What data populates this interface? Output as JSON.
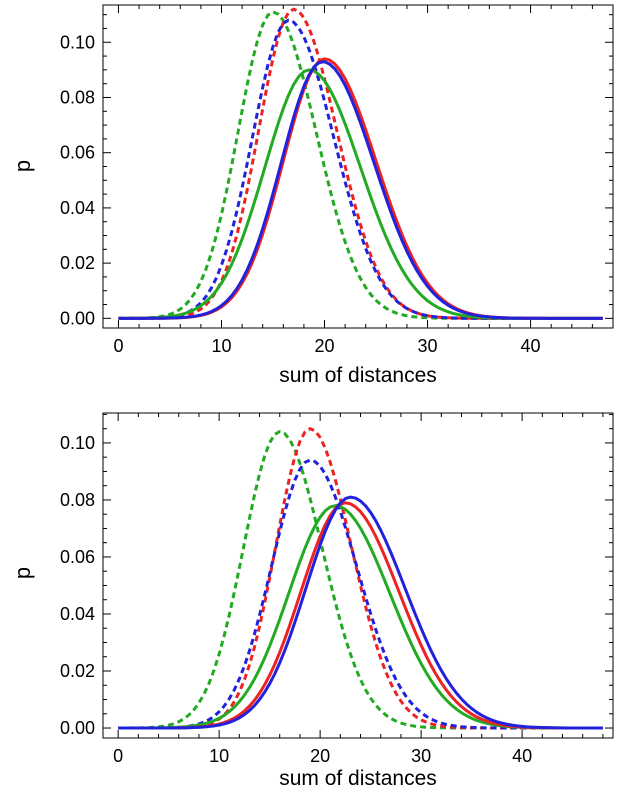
{
  "chart_data": [
    {
      "type": "line",
      "xlabel": "sum of distances",
      "ylabel": "p",
      "xlim": [
        -1.5,
        48
      ],
      "ylim": [
        -0.0035,
        0.1135
      ],
      "xticks": [
        0,
        10,
        20,
        30,
        40
      ],
      "yticks": [
        0.0,
        0.02,
        0.04,
        0.06,
        0.08,
        0.1
      ],
      "ytick_labels": [
        "0.00",
        "0.02",
        "0.04",
        "0.06",
        "0.08",
        "0.10"
      ],
      "grid": false,
      "series": [
        {
          "color": "#22aa22",
          "dash": "dotted",
          "mean": 15.0,
          "left_sd": 3.4,
          "right_sd": 4.2,
          "peak": 0.111,
          "x_max": 47
        },
        {
          "color": "#ee2222",
          "dash": "dotted",
          "mean": 17.0,
          "left_sd": 3.4,
          "right_sd": 4.2,
          "peak": 0.112,
          "x_max": 47
        },
        {
          "color": "#2222dd",
          "dash": "dotted",
          "mean": 16.5,
          "left_sd": 3.5,
          "right_sd": 4.4,
          "peak": 0.108,
          "x_max": 47
        },
        {
          "color": "#22aa22",
          "dash": "solid",
          "mean": 18.5,
          "left_sd": 4.3,
          "right_sd": 5.0,
          "peak": 0.09,
          "x_max": 47
        },
        {
          "color": "#ee2222",
          "dash": "solid",
          "mean": 20.0,
          "left_sd": 4.0,
          "right_sd": 5.0,
          "peak": 0.094,
          "x_max": 47
        },
        {
          "color": "#2222dd",
          "dash": "solid",
          "mean": 19.8,
          "left_sd": 4.0,
          "right_sd": 5.0,
          "peak": 0.093,
          "x_max": 47
        }
      ]
    },
    {
      "type": "line",
      "xlabel": "sum of distances",
      "ylabel": "p",
      "xlim": [
        -1.5,
        49
      ],
      "ylim": [
        -0.0035,
        0.1105
      ],
      "xticks": [
        0,
        10,
        20,
        30,
        40
      ],
      "yticks": [
        0.0,
        0.02,
        0.04,
        0.06,
        0.08,
        0.1
      ],
      "ytick_labels": [
        "0.00",
        "0.02",
        "0.04",
        "0.06",
        "0.08",
        "0.10"
      ],
      "grid": false,
      "series": [
        {
          "color": "#22aa22",
          "dash": "dotted",
          "mean": 16.0,
          "left_sd": 3.6,
          "right_sd": 4.2,
          "peak": 0.104,
          "x_max": 48
        },
        {
          "color": "#ee2222",
          "dash": "dotted",
          "mean": 19.0,
          "left_sd": 3.4,
          "right_sd": 4.1,
          "peak": 0.105,
          "x_max": 48
        },
        {
          "color": "#2222dd",
          "dash": "dotted",
          "mean": 19.0,
          "left_sd": 3.8,
          "right_sd": 4.6,
          "peak": 0.094,
          "x_max": 48
        },
        {
          "color": "#22aa22",
          "dash": "solid",
          "mean": 21.5,
          "left_sd": 4.6,
          "right_sd": 5.4,
          "peak": 0.078,
          "x_max": 48
        },
        {
          "color": "#ee2222",
          "dash": "solid",
          "mean": 22.5,
          "left_sd": 4.4,
          "right_sd": 5.3,
          "peak": 0.079,
          "x_max": 48
        },
        {
          "color": "#2222dd",
          "dash": "solid",
          "mean": 23.0,
          "left_sd": 4.4,
          "right_sd": 5.4,
          "peak": 0.081,
          "x_max": 48
        }
      ]
    }
  ]
}
